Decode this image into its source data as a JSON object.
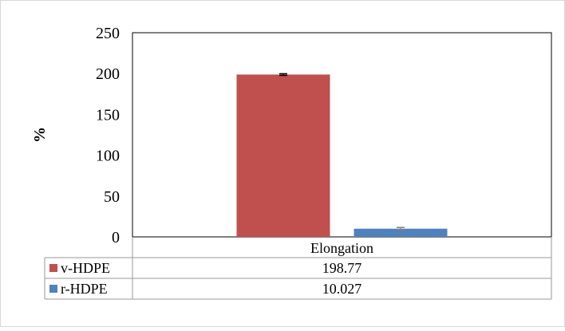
{
  "chart_data": {
    "type": "bar",
    "title": "",
    "xlabel": "",
    "ylabel": "%",
    "ylim": [
      0,
      250
    ],
    "yticks": [
      0,
      50,
      100,
      150,
      200,
      250
    ],
    "categories": [
      "Elongation"
    ],
    "series": [
      {
        "name": "v-HDPE",
        "values": [
          198.77
        ],
        "display": [
          "198.77"
        ],
        "error": [
          1.0
        ],
        "color": "#c0504d",
        "error_color": "#000000"
      },
      {
        "name": "r-HDPE",
        "values": [
          10.027
        ],
        "display": [
          "10.027"
        ],
        "error": [
          1.5
        ],
        "color": "#4f81bd",
        "error_color": "#7f7f7f"
      }
    ],
    "legend": "data-table",
    "grid": false
  }
}
